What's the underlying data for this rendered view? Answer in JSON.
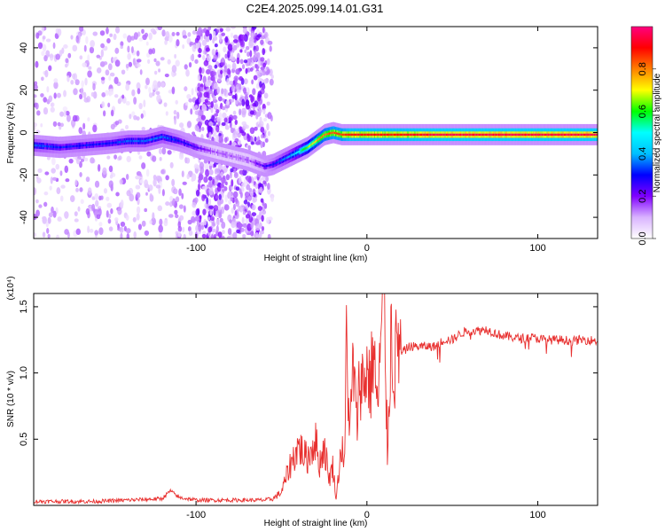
{
  "figure_title": "C2E4.2025.099.14.01.G31",
  "chart_data": [
    {
      "type": "heatmap",
      "title": "C2E4.2025.099.14.01.G31",
      "xlabel": "Height of straight line (km)",
      "ylabel": "Frequency (Hz)",
      "xlim": [
        -195,
        135
      ],
      "ylim": [
        -50,
        50
      ],
      "x_ticks": [
        -100,
        0,
        100
      ],
      "x_tick_labels": [
        "-100",
        "0",
        "100"
      ],
      "y_ticks": [
        -40,
        -20,
        0,
        20,
        40
      ],
      "y_tick_labels": [
        "-40",
        "-20",
        "0",
        "20",
        "40"
      ],
      "colorbar": {
        "label": "Normalized spectral amplitude",
        "range": [
          0,
          1
        ],
        "ticks": [
          0,
          0.2,
          0.4,
          0.6,
          0.8
        ],
        "tick_labels": [
          "0.0",
          "0.2",
          "0.4",
          "0.6",
          "0.8"
        ],
        "colormap": [
          "#ffffff",
          "#d9b3ff",
          "#8000ff",
          "#0000ff",
          "#00bfff",
          "#00ffff",
          "#00ff00",
          "#ffff00",
          "#ff8000",
          "#ff0000",
          "#ff0080"
        ]
      },
      "signal_track": {
        "x": [
          -195,
          -180,
          -165,
          -150,
          -140,
          -130,
          -120,
          -110,
          -100,
          -90,
          -80,
          -70,
          -60,
          -55,
          -50,
          -45,
          -40,
          -35,
          -30,
          -25,
          -20,
          -15,
          -10,
          -5,
          0,
          10,
          20,
          40,
          60,
          80,
          100,
          120,
          135
        ],
        "y": [
          -6,
          -7,
          -6,
          -5,
          -4,
          -4,
          -2,
          -4,
          -7,
          -9,
          -11,
          -13,
          -16,
          -15,
          -13,
          -11,
          -9,
          -7,
          -4,
          -1,
          0,
          -1,
          -1,
          -1,
          -1,
          -1,
          -1,
          -1,
          -1,
          -1,
          -1,
          -1,
          -1
        ],
        "amplitude": [
          0.35,
          0.3,
          0.3,
          0.3,
          0.35,
          0.35,
          0.35,
          0.3,
          0.25,
          0.15,
          0.15,
          0.15,
          0.25,
          0.3,
          0.35,
          0.4,
          0.5,
          0.65,
          0.75,
          0.8,
          0.85,
          0.85,
          0.9,
          0.9,
          0.9,
          0.9,
          0.9,
          0.95,
          0.95,
          0.95,
          0.95,
          0.95,
          0.95
        ]
      },
      "noise_regions": [
        {
          "x_from": -195,
          "x_to": -55,
          "level": "scattered"
        },
        {
          "x_from": -100,
          "x_to": -60,
          "level": "dense"
        }
      ]
    },
    {
      "type": "line",
      "xlabel": "Height of straight line (km)",
      "ylabel": "SNR (10 * v/v)",
      "y_multiplier": "(x10⁴)",
      "xlim": [
        -195,
        135
      ],
      "ylim": [
        0,
        1.6
      ],
      "x_ticks": [
        -100,
        0,
        100
      ],
      "x_tick_labels": [
        "-100",
        "0",
        "100"
      ],
      "y_ticks": [
        0.5,
        1.0,
        1.5
      ],
      "y_tick_labels": [
        "0.5",
        "1.0",
        "1.5"
      ],
      "series": [
        {
          "color": "#e8302f",
          "x": [
            -195,
            -180,
            -160,
            -140,
            -120,
            -115,
            -110,
            -100,
            -90,
            -80,
            -70,
            -60,
            -55,
            -50,
            -45,
            -40,
            -35,
            -30,
            -28,
            -25,
            -22,
            -20,
            -18,
            -15,
            -13,
            -12,
            -10,
            -8,
            -6,
            -4,
            -2,
            0,
            2,
            4,
            6,
            8,
            10,
            12,
            14,
            16,
            18,
            20,
            25,
            30,
            35,
            40,
            45,
            50,
            55,
            60,
            65,
            70,
            75,
            80,
            85,
            90,
            95,
            100,
            105,
            110,
            115,
            120,
            125,
            130,
            135
          ],
          "y": [
            0.03,
            0.03,
            0.03,
            0.04,
            0.05,
            0.11,
            0.06,
            0.04,
            0.04,
            0.04,
            0.04,
            0.04,
            0.05,
            0.1,
            0.3,
            0.45,
            0.35,
            0.5,
            0.3,
            0.45,
            0.2,
            0.3,
            0.05,
            0.45,
            0.3,
            1.3,
            0.5,
            1.1,
            0.6,
            1.0,
            0.9,
            1.05,
            0.9,
            1.2,
            0.7,
            1.2,
            1.55,
            0.4,
            1.3,
            1.0,
            1.25,
            1.15,
            1.2,
            1.2,
            1.2,
            1.2,
            1.25,
            1.25,
            1.3,
            1.32,
            1.32,
            1.33,
            1.3,
            1.28,
            1.27,
            1.26,
            1.27,
            1.26,
            1.25,
            1.25,
            1.25,
            1.24,
            1.25,
            1.25,
            1.24
          ]
        }
      ]
    }
  ]
}
